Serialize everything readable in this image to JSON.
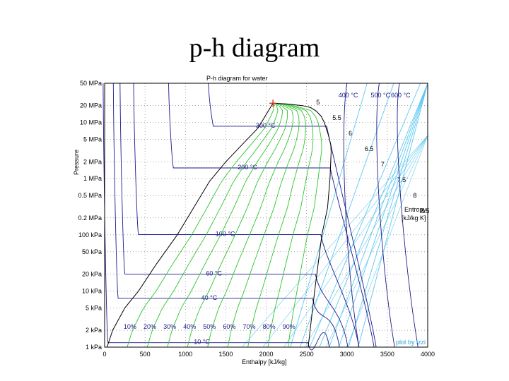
{
  "slide": {
    "title": "p-h diagram"
  },
  "chart_data": {
    "type": "line",
    "title": "P-h diagram for water",
    "xlabel": "Enthalpy [kJ/kg]",
    "ylabel": "Pressure",
    "xlim": [
      0,
      4000
    ],
    "ylim": [
      1,
      50000
    ],
    "y_scale": "log",
    "x_ticks": [
      {
        "v": 0,
        "label": "0"
      },
      {
        "v": 500,
        "label": "500"
      },
      {
        "v": 1000,
        "label": "1000"
      },
      {
        "v": 1500,
        "label": "1500"
      },
      {
        "v": 2000,
        "label": "2000"
      },
      {
        "v": 2500,
        "label": "2500"
      },
      {
        "v": 3000,
        "label": "3000"
      },
      {
        "v": 3500,
        "label": "3500"
      },
      {
        "v": 4000,
        "label": "4000"
      }
    ],
    "y_ticks": [
      {
        "v": 50000,
        "label": "50 MPa"
      },
      {
        "v": 20000,
        "label": "20 MPa"
      },
      {
        "v": 10000,
        "label": "10 MPa"
      },
      {
        "v": 5000,
        "label": "5 MPa"
      },
      {
        "v": 2000,
        "label": "2 MPa"
      },
      {
        "v": 1000,
        "label": "1 MPa"
      },
      {
        "v": 500,
        "label": "0.5 MPa"
      },
      {
        "v": 200,
        "label": "0.2 MPa"
      },
      {
        "v": 100,
        "label": "100 kPa"
      },
      {
        "v": 50,
        "label": "50 kPa"
      },
      {
        "v": 20,
        "label": "20 kPa"
      },
      {
        "v": 10,
        "label": "10 kPa"
      },
      {
        "v": 5,
        "label": "5 kPa"
      },
      {
        "v": 2,
        "label": "2 kPa"
      },
      {
        "v": 1,
        "label": "1 kPa"
      }
    ],
    "grid": true,
    "critical_point": {
      "h": 2084,
      "p": 22064
    },
    "saturation_dome": {
      "name": "saturation curve",
      "h": [
        30,
        100,
        250,
        420,
        640,
        900,
        1100,
        1300,
        1500,
        1700,
        1900,
        2084,
        2250,
        2450,
        2550,
        2620,
        2680,
        2720,
        2770,
        2800,
        2804,
        2790,
        2760,
        2690,
        2600,
        2520
      ],
      "p": [
        1,
        2,
        5,
        10,
        30,
        100,
        300,
        900,
        2000,
        4000,
        8000,
        22064,
        21500,
        20000,
        18500,
        16000,
        13000,
        10000,
        6000,
        4000,
        3000,
        1000,
        300,
        100,
        10,
        1
      ]
    },
    "isotherms": [
      {
        "label": "10 °C",
        "p": 1.2,
        "h_liq": 42,
        "h_vap": 2519
      },
      {
        "label": "40 °C",
        "p": 7.4,
        "h_liq": 168,
        "h_vap": 2574
      },
      {
        "label": "60 °C",
        "p": 20,
        "h_liq": 251,
        "h_vap": 2609
      },
      {
        "label": "100 °C",
        "p": 101,
        "h_liq": 419,
        "h_vap": 2676
      },
      {
        "label": "200 °C",
        "p": 1554,
        "h_liq": 852,
        "h_vap": 2793
      },
      {
        "label": "300 °C",
        "p": 8590,
        "h_liq": 1345,
        "h_vap": 2749
      },
      {
        "label": "400 °C",
        "p": null,
        "h_liq": null,
        "h_vap": null
      },
      {
        "label": "500 °C",
        "p": null,
        "h_liq": null,
        "h_vap": null
      },
      {
        "label": "600 °C",
        "p": null,
        "h_liq": null,
        "h_vap": null
      }
    ],
    "quality_lines": [
      {
        "label": "10%",
        "x": 0.1
      },
      {
        "label": "20%",
        "x": 0.2
      },
      {
        "label": "30%",
        "x": 0.3
      },
      {
        "label": "40%",
        "x": 0.4
      },
      {
        "label": "50%",
        "x": 0.5
      },
      {
        "label": "60%",
        "x": 0.6
      },
      {
        "label": "70%",
        "x": 0.7
      },
      {
        "label": "80%",
        "x": 0.8
      },
      {
        "label": "90%",
        "x": 0.9
      }
    ],
    "entropy_lines": {
      "legend": [
        "Entropy",
        "[kJ/kg K]"
      ],
      "values": [
        {
          "label": "5",
          "s": 5.0
        },
        {
          "label": "5.5",
          "s": 5.5
        },
        {
          "label": "6",
          "s": 6.0
        },
        {
          "label": "6.5",
          "s": 6.5
        },
        {
          "label": "7",
          "s": 7.0
        },
        {
          "label": "7.5",
          "s": 7.5
        },
        {
          "label": "8",
          "s": 8.0
        },
        {
          "label": "8.5",
          "s": 8.5
        }
      ]
    },
    "annotation": "plot by izzi",
    "colors": {
      "saturation": "#000000",
      "isotherm": "#1a1a8c",
      "quality": "#2ec42e",
      "entropy": "#5cc8f0",
      "critical_point": "#e03020"
    }
  }
}
